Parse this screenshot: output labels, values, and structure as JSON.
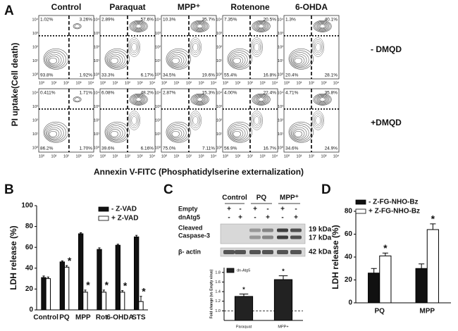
{
  "panel_a": {
    "label": "A",
    "columns": [
      "Control",
      "Paraquat",
      "MPP⁺",
      "Rotenone",
      "6-OHDA"
    ],
    "rows": [
      {
        "label": "- DMQD",
        "quadrants": [
          [
            "1.02%",
            "3.26%",
            "93.8%",
            "1.92%"
          ],
          [
            "2.89%",
            "57.6%",
            "33.3%",
            "6.17%"
          ],
          [
            "10.3%",
            "35.7%",
            "34.5%",
            "19.6%"
          ],
          [
            "7.35%",
            "20.5%",
            "55.4%",
            "16.8%"
          ],
          [
            "1.3%",
            "40.1%",
            "20.4%",
            "28.1%"
          ]
        ]
      },
      {
        "label": "+DMQD",
        "quadrants": [
          [
            "0.411%",
            "1.71%",
            "86.2%",
            "1.70%"
          ],
          [
            "6.08%",
            "48.2%",
            "39.6%",
            "6.16%"
          ],
          [
            "2.87%",
            "15.3%",
            "75.0%",
            "7.11%"
          ],
          [
            "4.00%",
            "22.4%",
            "56.9%",
            "16.7%"
          ],
          [
            "4.71%",
            "35.8%",
            "34.6%",
            "24.9%"
          ]
        ]
      }
    ],
    "axis_ticks": [
      "10⁰",
      "10¹",
      "10²",
      "10³",
      "10⁴"
    ],
    "y_label": "PI uptake(Cell death)",
    "x_label": "Annexin V-FITC (Phosphatidylserine externalization)"
  },
  "panel_c_blot": {
    "label": "C",
    "groups": [
      "Control",
      "PQ",
      "MPP⁺"
    ],
    "treatments": [
      {
        "name": "Empty",
        "signs": [
          "+",
          "-",
          "+",
          "-",
          "+",
          "-"
        ]
      },
      {
        "name": "dnAtg5",
        "signs": [
          "-",
          "+",
          "-",
          "+",
          "-",
          "+"
        ]
      }
    ],
    "bands": [
      {
        "name": [
          "Cleaved",
          "Caspase-3"
        ],
        "sizes": [
          "19 kDa",
          "17 kDa"
        ]
      },
      {
        "name": [
          "β- actin"
        ],
        "sizes": [
          "42 kDa"
        ]
      }
    ]
  },
  "chart_data": [
    {
      "type": "bar",
      "panel_label": "B",
      "ylabel": "LDH release (%)",
      "categories": [
        "Control",
        "PQ",
        "MPP",
        "Rot",
        "6-OHDA",
        "STS"
      ],
      "series": [
        {
          "name": "- Z-VAD",
          "color": "#111111",
          "values": [
            31,
            46,
            73,
            58,
            62,
            70
          ],
          "errors": [
            1.5,
            1,
            1,
            1.5,
            1,
            1.5
          ],
          "significant": [
            false,
            false,
            false,
            false,
            false,
            false
          ]
        },
        {
          "name": "+ Z-VAD",
          "color": "#ffffff",
          "values": [
            30,
            41,
            17,
            17,
            17,
            8
          ],
          "errors": [
            1.5,
            1.5,
            2,
            2,
            1.5,
            5
          ],
          "significant": [
            false,
            true,
            true,
            true,
            true,
            true
          ]
        }
      ],
      "significance_marker": "*",
      "ylim": [
        0,
        100
      ],
      "yticks": [
        0,
        20,
        40,
        60,
        80,
        100
      ],
      "legend": "upper right"
    },
    {
      "type": "bar",
      "ylabel": "Fold change (vs Empty virus)",
      "categories": [
        "Paraquat",
        "MPP+"
      ],
      "series": [
        {
          "name": "dn-Atg5",
          "color": "#222222",
          "values": [
            1.3,
            1.65
          ],
          "errors": [
            0.05,
            0.08
          ],
          "significant": [
            true,
            true
          ]
        }
      ],
      "significance_marker": "*",
      "ylim": [
        0.8,
        1.9
      ],
      "yticks": [
        {
          "value": 1,
          "label": "1.0"
        },
        {
          "value": 1.2,
          "label": "1.2"
        },
        {
          "value": 1.4,
          "label": "1.4"
        },
        {
          "value": 1.6,
          "label": "1.6"
        },
        {
          "value": 1.8,
          "label": "1.8"
        }
      ],
      "reference_line": 1,
      "legend": "upper left"
    },
    {
      "type": "bar",
      "panel_label": "D",
      "ylabel": "LDH release (%)",
      "categories": [
        "PQ",
        "MPP"
      ],
      "series": [
        {
          "name": "- Z-FG-NHO-Bz",
          "color": "#111111",
          "values": [
            26,
            30
          ],
          "errors": [
            4,
            4
          ],
          "significant": [
            false,
            false
          ]
        },
        {
          "name": "+ Z-FG-NHO-Bz",
          "color": "#ffffff",
          "values": [
            41,
            64
          ],
          "errors": [
            2.5,
            5
          ],
          "significant": [
            true,
            true
          ]
        }
      ],
      "significance_marker": "*",
      "ylim": [
        0,
        80
      ],
      "yticks": [
        0,
        20,
        40,
        60,
        80
      ],
      "legend": "upper left"
    }
  ]
}
